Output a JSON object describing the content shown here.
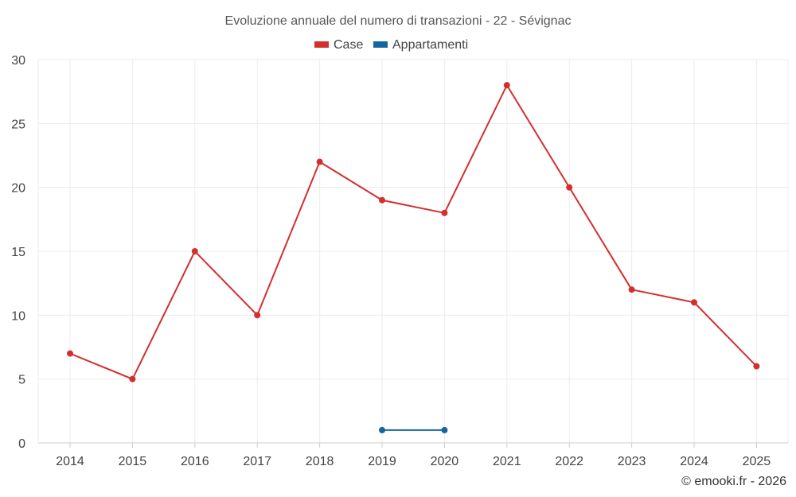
{
  "chart_data": {
    "type": "line",
    "title": "Evoluzione annuale del numero di transazioni - 22 - Sévignac",
    "categories": [
      "2014",
      "2015",
      "2016",
      "2017",
      "2018",
      "2019",
      "2020",
      "2021",
      "2022",
      "2023",
      "2024",
      "2025"
    ],
    "series": [
      {
        "name": "Case",
        "color": "#d32f2f",
        "values": [
          7,
          5,
          15,
          10,
          22,
          19,
          18,
          28,
          20,
          12,
          11,
          6
        ]
      },
      {
        "name": "Appartamenti",
        "color": "#1565a0",
        "values": [
          null,
          null,
          null,
          null,
          null,
          1,
          1,
          null,
          null,
          null,
          null,
          null
        ]
      }
    ],
    "yticks": [
      "0",
      "5",
      "10",
      "15",
      "20",
      "25",
      "30"
    ],
    "ylim": [
      0,
      30
    ],
    "grid": true,
    "legend_position": "top-center"
  },
  "credit": "© emooki.fr - 2026"
}
